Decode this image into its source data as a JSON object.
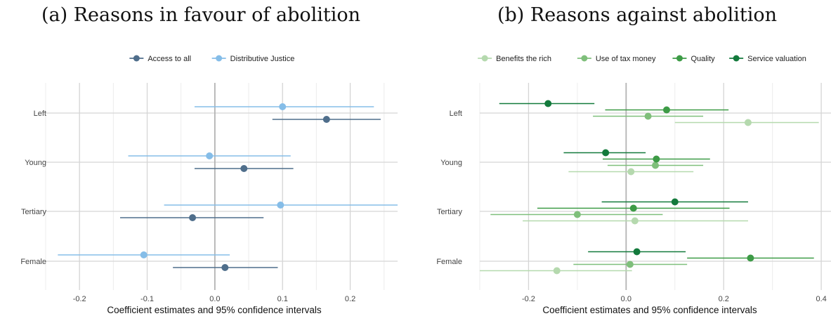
{
  "chart_data": [
    {
      "type": "scatter",
      "title": "(a) Reasons in favour of abolition",
      "xlabel": "Coefficient estimates and 95% confidence intervals",
      "ylabel": "",
      "xlim": [
        -0.25,
        0.27
      ],
      "xticks": [
        -0.2,
        -0.1,
        0.0,
        0.1,
        0.2
      ],
      "xtick_labels": [
        "-0.2",
        "-0.1",
        "0.0",
        "0.1",
        "0.2"
      ],
      "categories": [
        "Left",
        "Young",
        "Tertiary",
        "Female"
      ],
      "legend_position": "top",
      "grid": true,
      "series": [
        {
          "name": "Access to all",
          "color": "#4f6e8b",
          "estimates": [
            0.165,
            0.043,
            -0.033,
            0.015
          ],
          "ci_low": [
            0.085,
            -0.03,
            -0.14,
            -0.062
          ],
          "ci_high": [
            0.245,
            0.116,
            0.072,
            0.093
          ]
        },
        {
          "name": "Distributive Justice",
          "color": "#85bde8",
          "estimates": [
            0.1,
            -0.008,
            0.097,
            -0.105
          ],
          "ci_low": [
            -0.03,
            -0.128,
            -0.075,
            -0.232
          ],
          "ci_high": [
            0.235,
            0.112,
            0.27,
            0.022
          ]
        }
      ]
    },
    {
      "type": "scatter",
      "title": "(b) Reasons against abolition",
      "xlabel": "Coefficient estimates and 95% confidence intervals",
      "ylabel": "",
      "xlim": [
        -0.3,
        0.42
      ],
      "xticks": [
        -0.2,
        0.0,
        0.2,
        0.4
      ],
      "xtick_labels": [
        "-0.2",
        "0.0",
        "0.2",
        "0.4"
      ],
      "categories": [
        "Left",
        "Young",
        "Tertiary",
        "Female"
      ],
      "legend_position": "top",
      "grid": true,
      "series": [
        {
          "name": "Benefits the rich",
          "color": "#b5d9ae",
          "estimates": [
            0.25,
            0.01,
            0.018,
            -0.142
          ],
          "ci_low": [
            0.1,
            -0.118,
            -0.212,
            -0.3
          ],
          "ci_high": [
            0.395,
            0.138,
            0.25,
            0.012
          ]
        },
        {
          "name": "Use of tax money",
          "color": "#7fbf7b",
          "estimates": [
            0.045,
            0.06,
            -0.1,
            0.008
          ],
          "ci_low": [
            -0.068,
            -0.038,
            -0.278,
            -0.108
          ],
          "ci_high": [
            0.158,
            0.158,
            0.075,
            0.125
          ]
        },
        {
          "name": "Quality",
          "color": "#3d9b46",
          "estimates": [
            0.083,
            0.062,
            0.015,
            0.255
          ],
          "ci_low": [
            -0.043,
            -0.048,
            -0.182,
            0.125
          ],
          "ci_high": [
            0.21,
            0.172,
            0.212,
            0.385
          ]
        },
        {
          "name": "Service valuation",
          "color": "#137a3c",
          "estimates": [
            -0.16,
            -0.042,
            0.1,
            0.022
          ],
          "ci_low": [
            -0.26,
            -0.128,
            -0.05,
            -0.078
          ],
          "ci_high": [
            -0.065,
            0.04,
            0.25,
            0.122
          ]
        }
      ]
    }
  ]
}
